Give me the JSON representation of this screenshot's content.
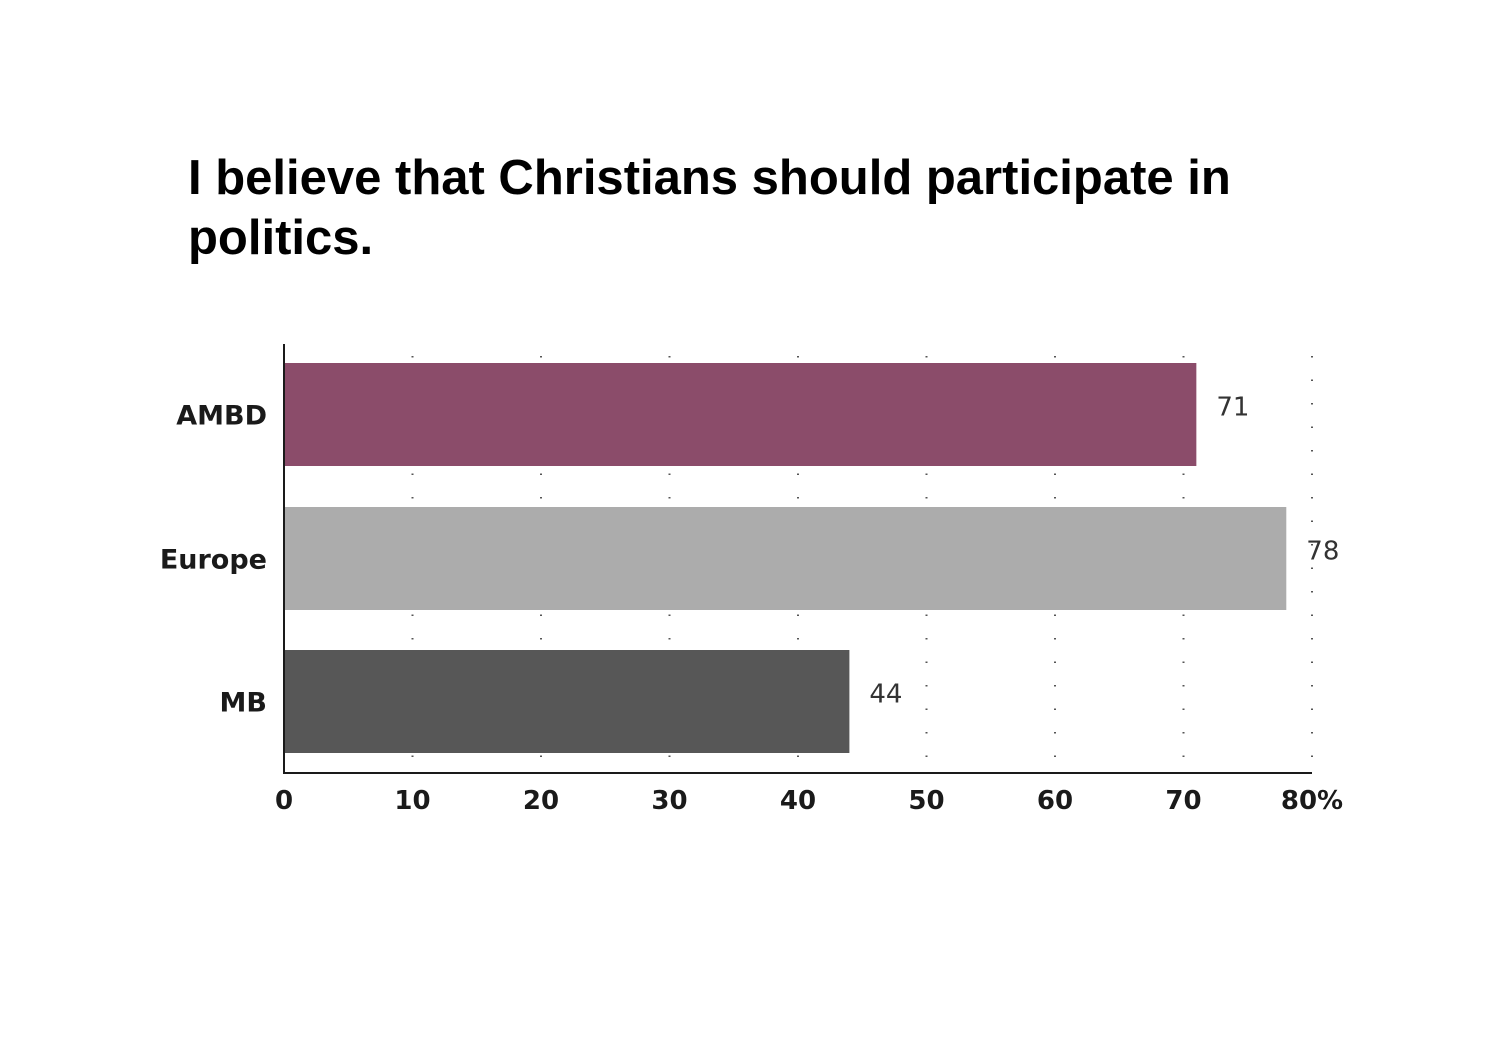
{
  "chart_data": {
    "type": "bar",
    "orientation": "horizontal",
    "title": "I believe that Christians should participate in politics.",
    "categories": [
      "AMBD",
      "Europe",
      "MB"
    ],
    "values": [
      71,
      78,
      44
    ],
    "data_labels": [
      "71",
      "78",
      "44"
    ],
    "colors": [
      "#8b4c6a",
      "#acacac",
      "#575757"
    ],
    "xlim": [
      0,
      80
    ],
    "xticks": [
      0,
      10,
      20,
      30,
      40,
      50,
      60,
      70,
      80
    ],
    "xtick_labels": [
      "0",
      "10",
      "20",
      "30",
      "40",
      "50",
      "60",
      "70",
      "80%"
    ],
    "xlabel": "",
    "ylabel": "",
    "grid": "vertical dotted",
    "legend": "none"
  }
}
